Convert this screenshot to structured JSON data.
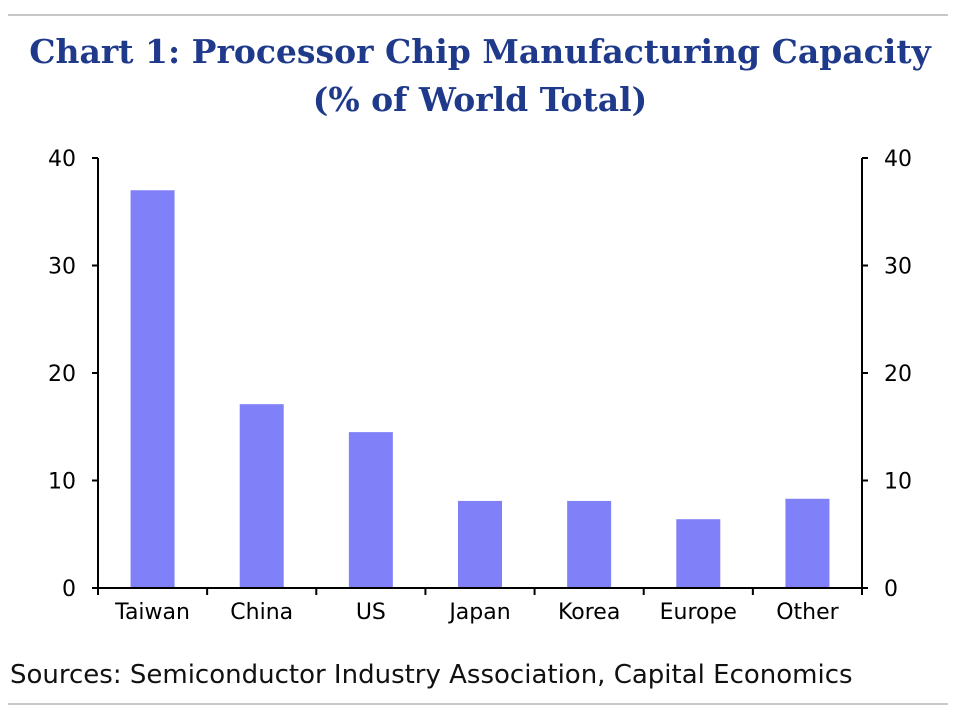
{
  "title_line1": "Chart 1: Processor Chip Manufacturing Capacity",
  "title_line2": "(% of World Total)",
  "source": "Sources: Semiconductor Industry Association, Capital Economics",
  "chart_data": {
    "type": "bar",
    "categories": [
      "Taiwan",
      "China",
      "US",
      "Japan",
      "Korea",
      "Europe",
      "Other"
    ],
    "values": [
      37,
      17.1,
      14.5,
      8.1,
      8.1,
      6.4,
      8.3
    ],
    "ylim": [
      0,
      40
    ],
    "yticks": [
      0,
      10,
      20,
      30,
      40
    ],
    "axes": "left-and-right",
    "grid": false,
    "bar_color": "#8080f8",
    "title_color": "#1f3a8a"
  }
}
